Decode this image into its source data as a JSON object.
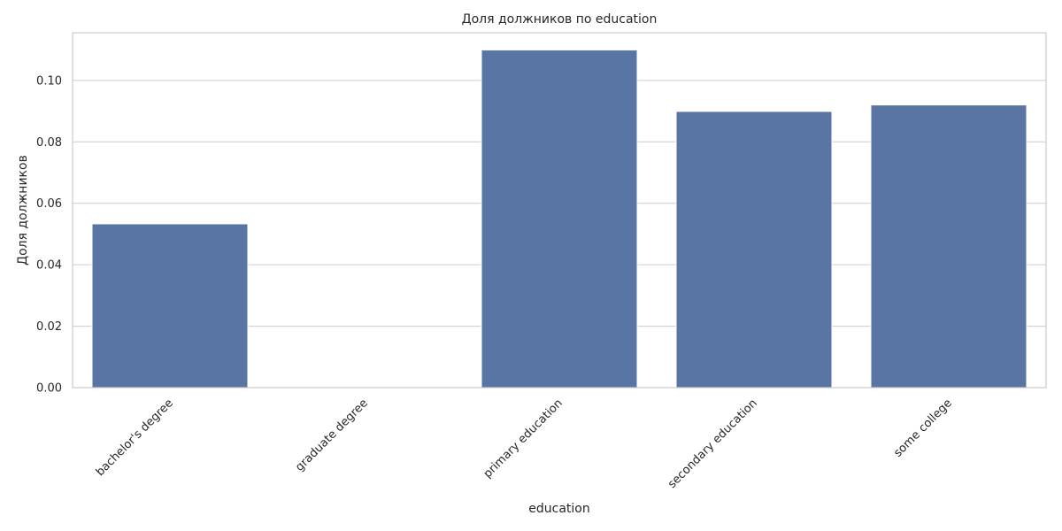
{
  "chart_data": {
    "type": "bar",
    "title": "Доля должников по education",
    "xlabel": "education",
    "ylabel": "Доля должников",
    "categories": [
      "bachelor's degree",
      "graduate degree",
      "primary education",
      "secondary education",
      "some college"
    ],
    "values": [
      0.0533,
      0.0,
      0.1099,
      0.0899,
      0.092
    ],
    "ylim": [
      0,
      0.1155
    ],
    "yticks": [
      0.0,
      0.02,
      0.04,
      0.06,
      0.08,
      0.1
    ],
    "ytick_labels": [
      "0.00",
      "0.02",
      "0.04",
      "0.06",
      "0.08",
      "0.10"
    ],
    "grid": "horizontal",
    "bar_color": "#5975a4",
    "x_tick_rotation": "45"
  }
}
